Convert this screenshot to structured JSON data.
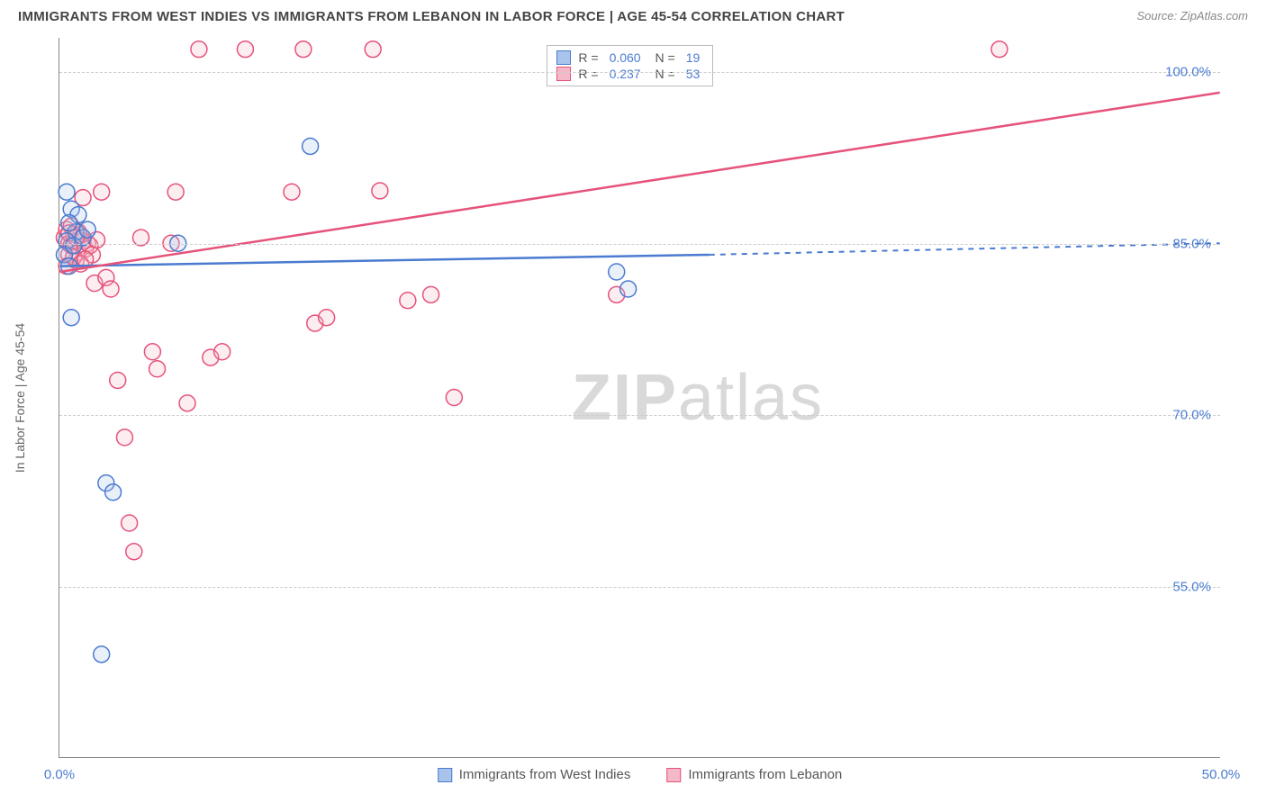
{
  "title": "IMMIGRANTS FROM WEST INDIES VS IMMIGRANTS FROM LEBANON IN LABOR FORCE | AGE 45-54 CORRELATION CHART",
  "source": "Source: ZipAtlas.com",
  "y_axis_label": "In Labor Force | Age 45-54",
  "watermark_a": "ZIP",
  "watermark_b": "atlas",
  "chart": {
    "type": "scatter",
    "background_color": "#ffffff",
    "grid_color": "#cccccc",
    "axis_color": "#888888",
    "title_fontsize": 15,
    "label_fontsize": 14,
    "tick_fontsize": 15,
    "tick_color": "#4a7bd0",
    "xlim": [
      0,
      50
    ],
    "ylim": [
      40,
      103
    ],
    "y_ticks": [
      55.0,
      70.0,
      85.0,
      100.0
    ],
    "y_tick_labels": [
      "55.0%",
      "70.0%",
      "85.0%",
      "100.0%"
    ],
    "x_ticks": [
      0,
      50
    ],
    "x_tick_labels": [
      "0.0%",
      "50.0%"
    ],
    "marker_radius": 9,
    "marker_stroke_width": 1.5,
    "marker_fill_opacity": 0.25,
    "line_width": 2.5,
    "series": [
      {
        "name": "Immigrants from West Indies",
        "color_stroke": "#4a7bd0",
        "color_fill": "#a8c4ea",
        "r": "0.060",
        "n": "19",
        "trend": {
          "x1": 0,
          "y1": 83.0,
          "x2": 28,
          "y2": 84.0,
          "dash_x2": 50,
          "dash_y2": 85.0
        },
        "points": [
          [
            0.3,
            89.5
          ],
          [
            0.5,
            88.0
          ],
          [
            0.7,
            86.0
          ],
          [
            0.3,
            85.2
          ],
          [
            0.2,
            84.0
          ],
          [
            0.4,
            83.0
          ],
          [
            0.5,
            78.5
          ],
          [
            2.0,
            64.0
          ],
          [
            2.3,
            63.2
          ],
          [
            1.8,
            49.0
          ],
          [
            5.1,
            85.0
          ],
          [
            10.8,
            93.5
          ],
          [
            24.0,
            82.5
          ],
          [
            24.5,
            81.0
          ],
          [
            0.8,
            87.5
          ],
          [
            0.6,
            84.8
          ],
          [
            1.0,
            85.5
          ],
          [
            1.2,
            86.2
          ],
          [
            0.4,
            86.8
          ]
        ]
      },
      {
        "name": "Immigrants from Lebanon",
        "color_stroke": "#e6537a",
        "color_fill": "#f5b8c9",
        "r": "0.237",
        "n": "53",
        "trend": {
          "x1": 0,
          "y1": 82.5,
          "x2": 50,
          "y2": 98.2
        },
        "points": [
          [
            0.2,
            85.5
          ],
          [
            0.4,
            85.0
          ],
          [
            0.6,
            85.8
          ],
          [
            0.3,
            86.2
          ],
          [
            0.8,
            84.2
          ],
          [
            0.5,
            84.8
          ],
          [
            1.0,
            85.2
          ],
          [
            0.7,
            83.5
          ],
          [
            1.2,
            85.0
          ],
          [
            0.4,
            84.0
          ],
          [
            0.9,
            85.7
          ],
          [
            0.3,
            83.0
          ],
          [
            1.5,
            81.5
          ],
          [
            1.0,
            89.0
          ],
          [
            1.8,
            89.5
          ],
          [
            2.0,
            82.0
          ],
          [
            2.2,
            81.0
          ],
          [
            2.5,
            73.0
          ],
          [
            2.8,
            68.0
          ],
          [
            3.0,
            60.5
          ],
          [
            3.2,
            58.0
          ],
          [
            3.5,
            85.5
          ],
          [
            4.0,
            75.5
          ],
          [
            4.2,
            74.0
          ],
          [
            4.8,
            85.0
          ],
          [
            5.0,
            89.5
          ],
          [
            5.5,
            71.0
          ],
          [
            6.0,
            102.0
          ],
          [
            6.5,
            75.0
          ],
          [
            7.0,
            75.5
          ],
          [
            8.0,
            102.0
          ],
          [
            10.0,
            89.5
          ],
          [
            10.5,
            102.0
          ],
          [
            11.0,
            78.0
          ],
          [
            11.5,
            78.5
          ],
          [
            13.5,
            102.0
          ],
          [
            13.8,
            89.6
          ],
          [
            15.0,
            80.0
          ],
          [
            16.0,
            80.5
          ],
          [
            17.0,
            71.5
          ],
          [
            24.0,
            80.5
          ],
          [
            40.5,
            102.0
          ],
          [
            1.1,
            84.5
          ],
          [
            1.3,
            84.8
          ],
          [
            0.6,
            83.8
          ],
          [
            0.8,
            86.0
          ],
          [
            0.5,
            86.5
          ],
          [
            1.4,
            84.0
          ],
          [
            0.9,
            83.2
          ],
          [
            0.7,
            85.5
          ],
          [
            1.6,
            85.3
          ],
          [
            0.4,
            85.9
          ],
          [
            1.1,
            83.6
          ]
        ]
      }
    ],
    "bottom_legend": [
      {
        "label": "Immigrants from West Indies",
        "fill": "#a8c4ea",
        "stroke": "#4a7bd0"
      },
      {
        "label": "Immigrants from Lebanon",
        "fill": "#f5b8c9",
        "stroke": "#e6537a"
      }
    ]
  }
}
